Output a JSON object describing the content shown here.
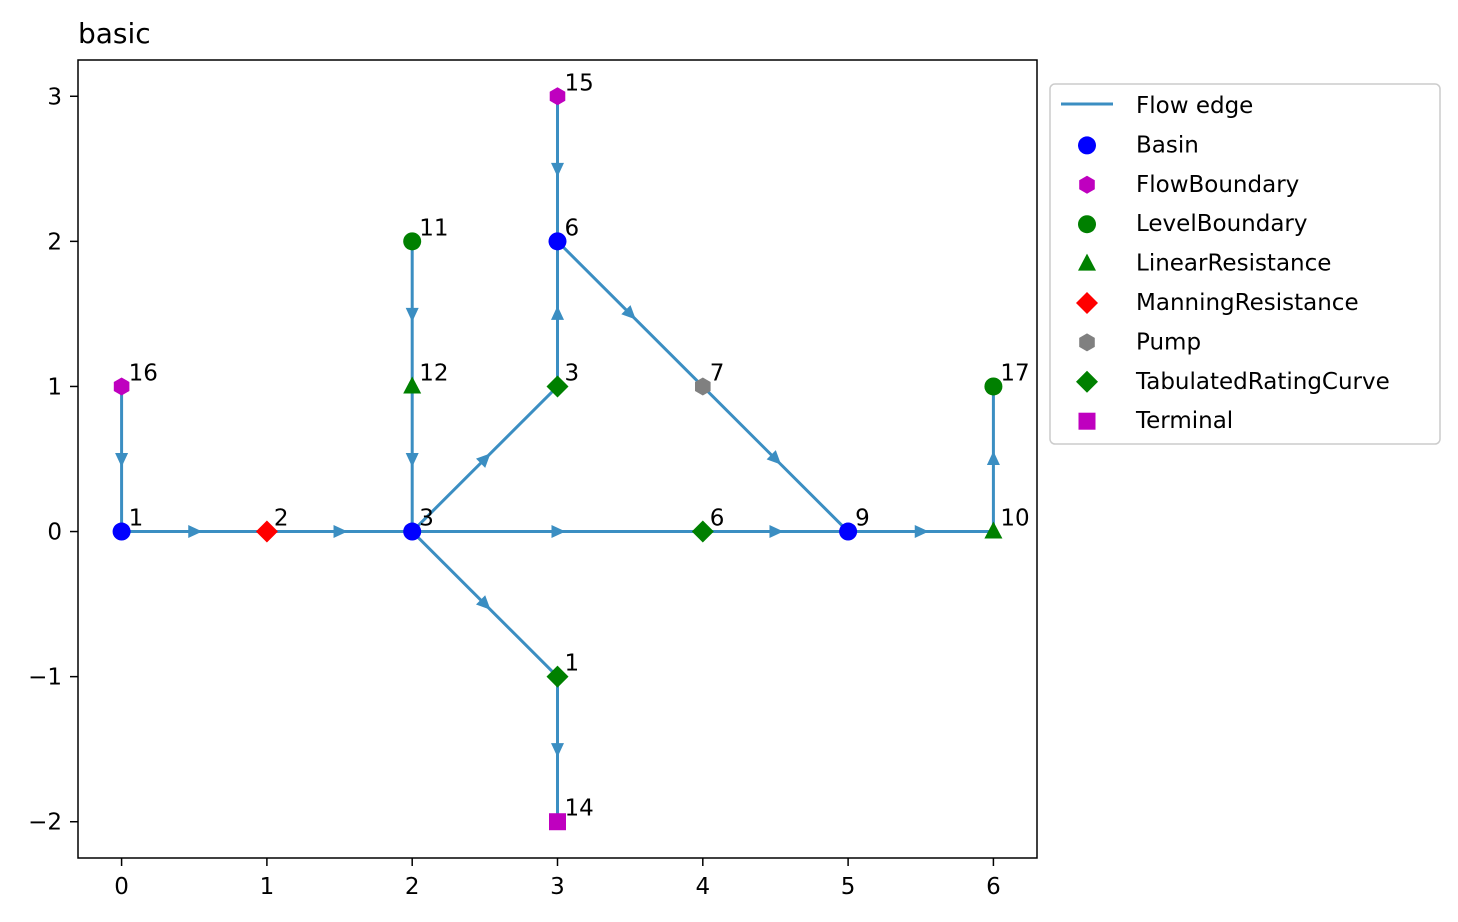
{
  "title": "basic",
  "colors": {
    "edge": "#3b8ec2",
    "basin": "#0000ff",
    "flow_boundary": "#bf00bf",
    "level_boundary": "#008000",
    "linear_resistance": "#008000",
    "manning_resistance": "#ff0000",
    "pump": "#808080",
    "tabulated_rating_curve": "#008000",
    "terminal": "#bf00bf"
  },
  "axes": {
    "xlim": [
      -0.3,
      6.3
    ],
    "ylim": [
      -2.25,
      3.25
    ],
    "xticks": [
      0,
      1,
      2,
      3,
      4,
      5,
      6
    ],
    "yticks": [
      -2,
      -1,
      0,
      1,
      2,
      3
    ],
    "ytick_labels": [
      "−2",
      "−1",
      "0",
      "1",
      "2",
      "3"
    ]
  },
  "legend": {
    "position": "outside-right-top",
    "entries": [
      {
        "label": "Flow edge",
        "kind": "edge"
      },
      {
        "label": "Basin",
        "kind": "basin"
      },
      {
        "label": "FlowBoundary",
        "kind": "flow_boundary"
      },
      {
        "label": "LevelBoundary",
        "kind": "level_boundary"
      },
      {
        "label": "LinearResistance",
        "kind": "linear_resistance"
      },
      {
        "label": "ManningResistance",
        "kind": "manning_resistance"
      },
      {
        "label": "Pump",
        "kind": "pump"
      },
      {
        "label": "TabulatedRatingCurve",
        "kind": "tabulated_rating_curve"
      },
      {
        "label": "Terminal",
        "kind": "terminal"
      }
    ]
  },
  "nodes": [
    {
      "id": "basin-1",
      "label": "1",
      "kind": "basin",
      "x": 0,
      "y": 0
    },
    {
      "id": "basin-3",
      "label": "3",
      "kind": "basin",
      "x": 2,
      "y": 0
    },
    {
      "id": "basin-6",
      "label": "6",
      "kind": "basin",
      "x": 3,
      "y": 2
    },
    {
      "id": "basin-9",
      "label": "9",
      "kind": "basin",
      "x": 5,
      "y": 0
    },
    {
      "id": "fb-15",
      "label": "15",
      "kind": "flow_boundary",
      "x": 3,
      "y": 3
    },
    {
      "id": "fb-16",
      "label": "16",
      "kind": "flow_boundary",
      "x": 0,
      "y": 1
    },
    {
      "id": "lb-11",
      "label": "11",
      "kind": "level_boundary",
      "x": 2,
      "y": 2
    },
    {
      "id": "lb-17",
      "label": "17",
      "kind": "level_boundary",
      "x": 6,
      "y": 1
    },
    {
      "id": "lr-12",
      "label": "12",
      "kind": "linear_resistance",
      "x": 2,
      "y": 1
    },
    {
      "id": "lr-10",
      "label": "10",
      "kind": "linear_resistance",
      "x": 6,
      "y": 0
    },
    {
      "id": "mr-2",
      "label": "2",
      "kind": "manning_resistance",
      "x": 1,
      "y": 0
    },
    {
      "id": "pump-7",
      "label": "7",
      "kind": "pump",
      "x": 4,
      "y": 1
    },
    {
      "id": "trc-3",
      "label": "3",
      "kind": "tabulated_rating_curve",
      "x": 3,
      "y": 1
    },
    {
      "id": "trc-6",
      "label": "6",
      "kind": "tabulated_rating_curve",
      "x": 4,
      "y": 0
    },
    {
      "id": "trc-1",
      "label": "1",
      "kind": "tabulated_rating_curve",
      "x": 3,
      "y": -1
    },
    {
      "id": "term-14",
      "label": "14",
      "kind": "terminal",
      "x": 3,
      "y": -2
    }
  ],
  "edges": [
    {
      "from": "basin-1",
      "to": "mr-2"
    },
    {
      "from": "mr-2",
      "to": "basin-3"
    },
    {
      "from": "basin-3",
      "to": "trc-3"
    },
    {
      "from": "trc-3",
      "to": "basin-6"
    },
    {
      "from": "basin-6",
      "to": "pump-7"
    },
    {
      "from": "pump-7",
      "to": "basin-9"
    },
    {
      "from": "basin-9",
      "to": "lr-10"
    },
    {
      "from": "basin-3",
      "to": "trc-6"
    },
    {
      "from": "trc-6",
      "to": "basin-9"
    },
    {
      "from": "basin-3",
      "to": "trc-1"
    },
    {
      "from": "trc-1",
      "to": "term-14"
    },
    {
      "from": "lb-11",
      "to": "lr-12"
    },
    {
      "from": "lr-12",
      "to": "basin-3"
    },
    {
      "from": "fb-15",
      "to": "basin-6"
    },
    {
      "from": "fb-16",
      "to": "basin-1"
    },
    {
      "from": "lr-10",
      "to": "lb-17"
    }
  ]
}
